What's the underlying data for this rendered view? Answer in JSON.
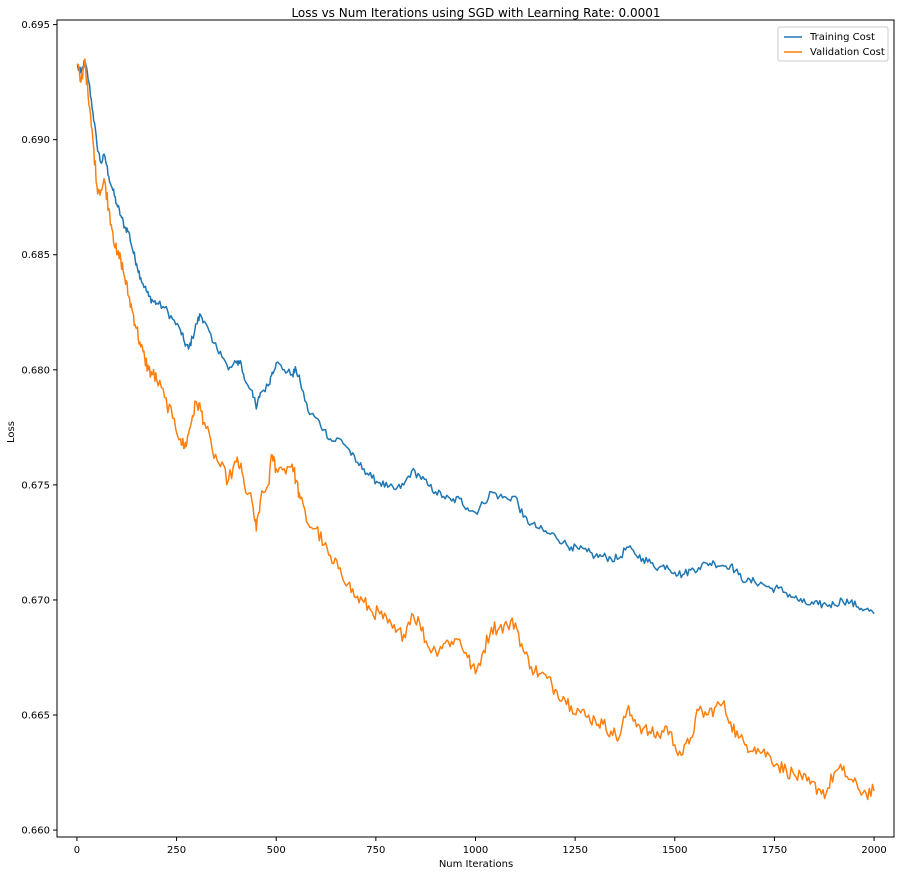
{
  "chart_data": {
    "type": "line",
    "title": "Loss vs Num Iterations using SGD with Learning Rate: 0.0001",
    "xlabel": "Num Iterations",
    "ylabel": "Loss",
    "xlim": [
      -50,
      2050
    ],
    "ylim": [
      0.6597,
      0.6952
    ],
    "x_ticks": [
      0,
      250,
      500,
      750,
      1000,
      1250,
      1500,
      1750,
      2000
    ],
    "x_tick_labels": [
      "0",
      "250",
      "500",
      "750",
      "1000",
      "1250",
      "1500",
      "1750",
      "2000"
    ],
    "y_ticks": [
      0.66,
      0.665,
      0.67,
      0.675,
      0.68,
      0.685,
      0.69,
      0.695
    ],
    "y_tick_labels": [
      "0.660",
      "0.665",
      "0.670",
      "0.675",
      "0.680",
      "0.685",
      "0.690",
      "0.695"
    ],
    "grid": false,
    "legend_position": "top-right",
    "series": [
      {
        "name": "Training Cost",
        "color": "#1f77b4",
        "x": [
          0,
          10,
          20,
          30,
          40,
          50,
          60,
          70,
          80,
          90,
          100,
          110,
          120,
          130,
          140,
          150,
          160,
          170,
          180,
          190,
          200,
          220,
          240,
          260,
          270,
          280,
          290,
          300,
          310,
          320,
          340,
          360,
          380,
          400,
          410,
          420,
          440,
          450,
          460,
          480,
          490,
          500,
          520,
          540,
          550,
          560,
          580,
          600,
          620,
          640,
          660,
          680,
          700,
          720,
          740,
          760,
          780,
          800,
          820,
          840,
          860,
          880,
          900,
          920,
          940,
          960,
          980,
          1000,
          1020,
          1040,
          1060,
          1080,
          1100,
          1120,
          1140,
          1160,
          1180,
          1200,
          1220,
          1240,
          1260,
          1280,
          1300,
          1320,
          1340,
          1360,
          1380,
          1400,
          1420,
          1440,
          1460,
          1480,
          1500,
          1520,
          1540,
          1560,
          1580,
          1600,
          1620,
          1640,
          1660,
          1680,
          1700,
          1720,
          1740,
          1760,
          1780,
          1800,
          1820,
          1840,
          1860,
          1880,
          1900,
          1920,
          1940,
          1960,
          1980,
          2000
        ],
        "values": [
          0.6932,
          0.6929,
          0.6934,
          0.6925,
          0.6912,
          0.6898,
          0.689,
          0.6893,
          0.6884,
          0.6878,
          0.6872,
          0.6867,
          0.6862,
          0.686,
          0.6852,
          0.6846,
          0.684,
          0.6836,
          0.6832,
          0.683,
          0.6829,
          0.6827,
          0.6822,
          0.6817,
          0.6812,
          0.6809,
          0.6814,
          0.682,
          0.6824,
          0.6821,
          0.6812,
          0.6808,
          0.68,
          0.6803,
          0.6804,
          0.6796,
          0.6791,
          0.6783,
          0.679,
          0.6793,
          0.6799,
          0.6803,
          0.68,
          0.6798,
          0.68,
          0.6795,
          0.6782,
          0.6779,
          0.6774,
          0.6769,
          0.677,
          0.6766,
          0.676,
          0.6757,
          0.6753,
          0.6751,
          0.6749,
          0.6748,
          0.675,
          0.6756,
          0.6754,
          0.675,
          0.6747,
          0.6745,
          0.6743,
          0.6744,
          0.674,
          0.6738,
          0.6742,
          0.6747,
          0.6745,
          0.6744,
          0.6745,
          0.6736,
          0.6733,
          0.6731,
          0.6729,
          0.6728,
          0.6725,
          0.6723,
          0.6722,
          0.6721,
          0.6719,
          0.6719,
          0.6718,
          0.6718,
          0.6723,
          0.672,
          0.6718,
          0.6716,
          0.6714,
          0.6715,
          0.6712,
          0.6711,
          0.6713,
          0.6714,
          0.6716,
          0.6716,
          0.6715,
          0.6715,
          0.6711,
          0.6708,
          0.6708,
          0.6707,
          0.6705,
          0.6705,
          0.6703,
          0.6701,
          0.6699,
          0.6698,
          0.6698,
          0.6698,
          0.6698,
          0.67,
          0.6699,
          0.6697,
          0.6696,
          0.6694
        ]
      },
      {
        "name": "Validation Cost",
        "color": "#ff7f0e",
        "x": [
          0,
          10,
          20,
          30,
          40,
          50,
          60,
          70,
          80,
          90,
          100,
          110,
          120,
          130,
          140,
          150,
          160,
          170,
          180,
          190,
          200,
          220,
          240,
          260,
          270,
          280,
          290,
          300,
          310,
          320,
          340,
          360,
          380,
          400,
          410,
          420,
          440,
          450,
          460,
          480,
          490,
          500,
          520,
          540,
          550,
          560,
          580,
          600,
          620,
          640,
          660,
          680,
          700,
          720,
          740,
          760,
          780,
          800,
          820,
          840,
          860,
          880,
          900,
          920,
          940,
          960,
          980,
          1000,
          1020,
          1040,
          1060,
          1080,
          1100,
          1120,
          1140,
          1160,
          1180,
          1200,
          1220,
          1240,
          1260,
          1280,
          1300,
          1320,
          1340,
          1360,
          1380,
          1400,
          1420,
          1440,
          1460,
          1480,
          1500,
          1520,
          1540,
          1560,
          1580,
          1600,
          1620,
          1640,
          1660,
          1680,
          1700,
          1720,
          1740,
          1760,
          1780,
          1800,
          1820,
          1840,
          1860,
          1880,
          1900,
          1920,
          1940,
          1960,
          1980,
          2000
        ],
        "values": [
          0.6933,
          0.6925,
          0.6935,
          0.6915,
          0.69,
          0.688,
          0.6878,
          0.6882,
          0.687,
          0.686,
          0.685,
          0.6848,
          0.684,
          0.6832,
          0.6825,
          0.6818,
          0.681,
          0.6805,
          0.68,
          0.6798,
          0.6796,
          0.6788,
          0.6779,
          0.677,
          0.6766,
          0.6772,
          0.678,
          0.6786,
          0.6783,
          0.6777,
          0.6765,
          0.6758,
          0.6752,
          0.676,
          0.6758,
          0.675,
          0.6742,
          0.673,
          0.6743,
          0.675,
          0.6763,
          0.6757,
          0.6757,
          0.6759,
          0.6752,
          0.6744,
          0.6733,
          0.6731,
          0.6724,
          0.6716,
          0.6714,
          0.6707,
          0.6701,
          0.6699,
          0.6695,
          0.6694,
          0.669,
          0.6686,
          0.6685,
          0.6694,
          0.669,
          0.668,
          0.6678,
          0.6681,
          0.6682,
          0.6683,
          0.6675,
          0.6668,
          0.6678,
          0.6688,
          0.6688,
          0.6689,
          0.669,
          0.6678,
          0.6671,
          0.6668,
          0.6666,
          0.6661,
          0.6658,
          0.6654,
          0.6652,
          0.6649,
          0.6648,
          0.6646,
          0.6643,
          0.664,
          0.6652,
          0.6648,
          0.6644,
          0.6642,
          0.6641,
          0.6645,
          0.6637,
          0.6633,
          0.664,
          0.6652,
          0.665,
          0.6653,
          0.6655,
          0.6647,
          0.664,
          0.6637,
          0.6636,
          0.6634,
          0.6632,
          0.6628,
          0.6626,
          0.6624,
          0.6622,
          0.662,
          0.6618,
          0.6616,
          0.6625,
          0.6626,
          0.6622,
          0.6618,
          0.6616,
          0.6617
        ]
      }
    ]
  }
}
